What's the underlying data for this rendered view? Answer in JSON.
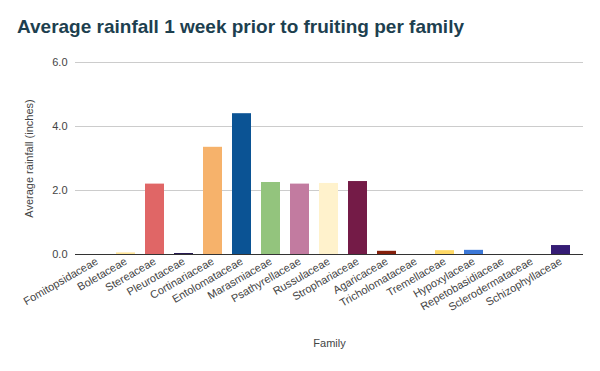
{
  "chart_data": {
    "type": "bar",
    "title": "Average rainfall 1 week prior to fruiting per family",
    "x_label": "Family",
    "y_label": "Average rainfall (inches)",
    "categories": [
      "Fomitopsidaceae",
      "Boletaceae",
      "Stereaceae",
      "Pleurotaceae",
      "Cortinariaceae",
      "Entolomataceae",
      "Marasmiaceae",
      "Psathyrellaceae",
      "Russulaceae",
      "Strophariaceae",
      "Agaricaceae",
      "Tricholomataceae",
      "Tremellaceae",
      "Hypoxylaceae",
      "Repetobasidiaceae",
      "Sclerodermataceae",
      "Schizophyllaceae"
    ],
    "values": [
      0,
      0.05,
      2.2,
      0.03,
      3.35,
      4.4,
      2.25,
      2.2,
      2.22,
      2.28,
      0.1,
      0,
      0.12,
      0.13,
      0,
      0,
      0.28
    ],
    "colors": [
      "#4a86e8",
      "#ffe599",
      "#e06666",
      "#20124d",
      "#f6b26b",
      "#0b5394",
      "#93c47d",
      "#c27ba0",
      "#fff2cc",
      "#741b47",
      "#85200c",
      "#999999",
      "#ffd966",
      "#3c78d8",
      "#6aa84f",
      "#b45f06",
      "#351c75"
    ],
    "ylim": [
      0,
      6
    ],
    "yticks": [
      0,
      2,
      4,
      6
    ],
    "grid": true
  }
}
